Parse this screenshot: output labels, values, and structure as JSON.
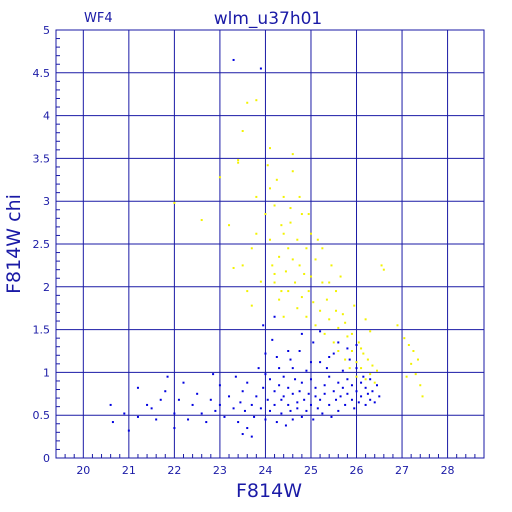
{
  "chart_data": {
    "type": "scatter",
    "title": "wlm_u37h01",
    "panel_label": "WF4",
    "xlabel": "F814W",
    "ylabel": "F814W chi",
    "xlim": [
      19.4,
      28.8
    ],
    "ylim": [
      0,
      5
    ],
    "x_ticks": [
      20,
      21,
      22,
      23,
      24,
      25,
      26,
      27,
      28
    ],
    "y_ticks": [
      0,
      0.5,
      1,
      1.5,
      2,
      2.5,
      3,
      3.5,
      4,
      4.5,
      5
    ],
    "x_tick_labels": [
      "20",
      "21",
      "22",
      "23",
      "24",
      "25",
      "26",
      "27",
      "28"
    ],
    "y_tick_labels": [
      "0",
      "0.5",
      "1",
      "1.5",
      "2",
      "2.5",
      "3",
      "3.5",
      "4",
      "4.5",
      "5"
    ],
    "grid": true,
    "colors": {
      "axis": "#1a1aa6",
      "blue_points": "#0000e0",
      "yellow_points": "#f2f200"
    },
    "series": [
      {
        "color": "#f2f200",
        "points": [
          [
            22.0,
            2.98
          ],
          [
            22.6,
            2.78
          ],
          [
            23.0,
            3.28
          ],
          [
            23.2,
            2.72
          ],
          [
            23.3,
            2.22
          ],
          [
            23.4,
            3.48
          ],
          [
            23.5,
            3.82
          ],
          [
            23.6,
            4.15
          ],
          [
            23.8,
            4.18
          ],
          [
            23.8,
            3.05
          ],
          [
            23.7,
            2.45
          ],
          [
            23.9,
            2.06
          ],
          [
            23.4,
            3.45
          ],
          [
            23.5,
            2.25
          ],
          [
            23.6,
            1.95
          ],
          [
            23.7,
            1.78
          ],
          [
            23.8,
            2.62
          ],
          [
            24.0,
            2.85
          ],
          [
            24.05,
            3.42
          ],
          [
            24.1,
            3.62
          ],
          [
            24.1,
            3.15
          ],
          [
            24.1,
            2.55
          ],
          [
            24.15,
            2.25
          ],
          [
            24.2,
            2.95
          ],
          [
            24.2,
            2.05
          ],
          [
            24.25,
            3.25
          ],
          [
            24.3,
            2.35
          ],
          [
            24.3,
            1.85
          ],
          [
            24.35,
            2.72
          ],
          [
            24.4,
            1.65
          ],
          [
            24.4,
            3.05
          ],
          [
            24.45,
            2.18
          ],
          [
            24.5,
            2.45
          ],
          [
            24.5,
            1.95
          ],
          [
            24.55,
            2.92
          ],
          [
            24.6,
            3.55
          ],
          [
            24.6,
            3.35
          ],
          [
            24.65,
            2.05
          ],
          [
            24.7,
            1.75
          ],
          [
            24.7,
            2.55
          ],
          [
            24.75,
            2.25
          ],
          [
            24.8,
            2.85
          ],
          [
            24.8,
            1.88
          ],
          [
            24.85,
            2.15
          ],
          [
            24.9,
            1.65
          ],
          [
            24.9,
            2.45
          ],
          [
            24.95,
            1.95
          ],
          [
            25.0,
            2.62
          ],
          [
            25.0,
            2.12
          ],
          [
            25.05,
            1.82
          ],
          [
            25.1,
            2.32
          ],
          [
            25.1,
            1.55
          ],
          [
            25.15,
            2.55
          ],
          [
            25.2,
            1.72
          ],
          [
            25.25,
            2.05
          ],
          [
            25.3,
            1.45
          ],
          [
            25.35,
            1.85
          ],
          [
            25.4,
            1.62
          ],
          [
            25.45,
            2.25
          ],
          [
            25.5,
            1.35
          ],
          [
            25.55,
            1.95
          ],
          [
            25.6,
            1.52
          ],
          [
            25.6,
            1.25
          ],
          [
            25.65,
            2.12
          ],
          [
            25.7,
            1.68
          ],
          [
            25.75,
            1.15
          ],
          [
            25.8,
            1.42
          ],
          [
            25.85,
            1.05
          ],
          [
            25.9,
            1.25
          ],
          [
            25.95,
            1.78
          ],
          [
            26.0,
            1.12
          ],
          [
            26.0,
            0.95
          ],
          [
            26.05,
            1.35
          ],
          [
            26.1,
            1.05
          ],
          [
            26.15,
            1.22
          ],
          [
            26.2,
            0.92
          ],
          [
            26.25,
            1.15
          ],
          [
            26.3,
            0.98
          ],
          [
            26.35,
            1.08
          ],
          [
            26.4,
            0.88
          ],
          [
            26.45,
            1.02
          ],
          [
            26.3,
            1.48
          ],
          [
            26.2,
            1.62
          ],
          [
            26.1,
            1.28
          ],
          [
            24.4,
            2.62
          ],
          [
            24.6,
            2.32
          ],
          [
            24.2,
            2.15
          ],
          [
            24.35,
            1.95
          ],
          [
            24.55,
            2.75
          ],
          [
            24.75,
            3.05
          ],
          [
            24.95,
            2.85
          ],
          [
            25.25,
            2.45
          ],
          [
            25.4,
            2.05
          ],
          [
            25.55,
            1.72
          ],
          [
            25.75,
            1.58
          ],
          [
            25.9,
            1.45
          ],
          [
            26.55,
            2.25
          ],
          [
            26.6,
            2.2
          ],
          [
            26.9,
            1.55
          ],
          [
            27.05,
            1.4
          ],
          [
            27.15,
            1.32
          ],
          [
            27.2,
            1.1
          ],
          [
            27.25,
            1.25
          ],
          [
            27.3,
            0.98
          ],
          [
            27.35,
            1.15
          ],
          [
            27.4,
            0.85
          ],
          [
            27.45,
            0.72
          ],
          [
            27.1,
            0.95
          ]
        ]
      },
      {
        "color": "#0000e0",
        "points": [
          [
            23.3,
            4.65
          ],
          [
            23.9,
            4.55
          ],
          [
            20.6,
            0.62
          ],
          [
            20.65,
            0.42
          ],
          [
            20.9,
            0.52
          ],
          [
            21.0,
            0.32
          ],
          [
            21.2,
            0.48
          ],
          [
            21.2,
            0.82
          ],
          [
            21.4,
            0.62
          ],
          [
            21.5,
            0.58
          ],
          [
            21.6,
            0.45
          ],
          [
            21.7,
            0.68
          ],
          [
            21.8,
            0.78
          ],
          [
            21.85,
            0.95
          ],
          [
            22.0,
            0.52
          ],
          [
            22.0,
            0.35
          ],
          [
            22.1,
            0.68
          ],
          [
            22.2,
            0.88
          ],
          [
            22.3,
            0.45
          ],
          [
            22.4,
            0.62
          ],
          [
            22.5,
            0.75
          ],
          [
            22.6,
            0.52
          ],
          [
            22.7,
            0.42
          ],
          [
            22.8,
            0.68
          ],
          [
            22.85,
            0.98
          ],
          [
            22.9,
            0.55
          ],
          [
            23.0,
            0.62
          ],
          [
            23.0,
            0.85
          ],
          [
            23.1,
            0.48
          ],
          [
            23.2,
            0.72
          ],
          [
            23.3,
            0.58
          ],
          [
            23.35,
            0.95
          ],
          [
            23.4,
            0.42
          ],
          [
            23.45,
            0.65
          ],
          [
            23.5,
            0.78
          ],
          [
            23.55,
            0.55
          ],
          [
            23.6,
            0.35
          ],
          [
            23.6,
            0.88
          ],
          [
            23.7,
            0.62
          ],
          [
            23.75,
            0.48
          ],
          [
            23.8,
            0.72
          ],
          [
            23.85,
            1.05
          ],
          [
            23.9,
            0.58
          ],
          [
            23.95,
            0.82
          ],
          [
            23.95,
            1.55
          ],
          [
            24.0,
            1.22
          ],
          [
            24.0,
            0.45
          ],
          [
            24.05,
            0.68
          ],
          [
            24.1,
            0.92
          ],
          [
            24.1,
            0.55
          ],
          [
            24.15,
            1.38
          ],
          [
            24.2,
            0.78
          ],
          [
            24.2,
            0.62
          ],
          [
            24.25,
            0.42
          ],
          [
            24.3,
            0.85
          ],
          [
            24.3,
            1.05
          ],
          [
            24.35,
            0.68
          ],
          [
            24.35,
            0.52
          ],
          [
            24.4,
            0.95
          ],
          [
            24.4,
            0.72
          ],
          [
            24.45,
            0.38
          ],
          [
            24.5,
            0.62
          ],
          [
            24.5,
            0.82
          ],
          [
            24.55,
            1.15
          ],
          [
            24.55,
            0.55
          ],
          [
            24.6,
            0.75
          ],
          [
            24.6,
            0.45
          ],
          [
            24.65,
            0.92
          ],
          [
            24.7,
            0.65
          ],
          [
            24.7,
            0.58
          ],
          [
            24.75,
            1.25
          ],
          [
            24.75,
            0.78
          ],
          [
            24.8,
            0.48
          ],
          [
            24.8,
            0.88
          ],
          [
            24.85,
            0.68
          ],
          [
            24.9,
            1.02
          ],
          [
            24.9,
            0.55
          ],
          [
            24.95,
            0.75
          ],
          [
            25.0,
            0.62
          ],
          [
            25.0,
            0.92
          ],
          [
            25.05,
            1.35
          ],
          [
            25.05,
            0.45
          ],
          [
            25.1,
            0.72
          ],
          [
            25.1,
            0.82
          ],
          [
            25.15,
            0.58
          ],
          [
            25.2,
            1.12
          ],
          [
            25.2,
            0.68
          ],
          [
            25.25,
            0.52
          ],
          [
            25.3,
            0.85
          ],
          [
            25.3,
            0.75
          ],
          [
            25.35,
            1.05
          ],
          [
            25.4,
            0.62
          ],
          [
            25.4,
            0.95
          ],
          [
            25.45,
            0.48
          ],
          [
            25.5,
            0.78
          ],
          [
            25.5,
            1.22
          ],
          [
            25.55,
            0.68
          ],
          [
            25.6,
            0.88
          ],
          [
            25.6,
            0.55
          ],
          [
            25.65,
            0.72
          ],
          [
            25.7,
            1.02
          ],
          [
            25.7,
            0.82
          ],
          [
            25.75,
            0.62
          ],
          [
            25.8,
            0.92
          ],
          [
            25.8,
            0.75
          ],
          [
            25.85,
            1.15
          ],
          [
            25.9,
            0.68
          ],
          [
            25.9,
            0.85
          ],
          [
            25.95,
            0.58
          ],
          [
            26.0,
            0.78
          ],
          [
            26.0,
            1.05
          ],
          [
            26.05,
            0.65
          ],
          [
            26.1,
            0.88
          ],
          [
            26.1,
            0.72
          ],
          [
            26.15,
            0.95
          ],
          [
            26.2,
            0.62
          ],
          [
            26.2,
            0.82
          ],
          [
            26.25,
            0.75
          ],
          [
            26.3,
            0.68
          ],
          [
            26.3,
            0.92
          ],
          [
            26.35,
            0.78
          ],
          [
            26.4,
            0.65
          ],
          [
            26.45,
            0.85
          ],
          [
            26.5,
            0.72
          ],
          [
            23.5,
            0.28
          ],
          [
            23.7,
            0.25
          ],
          [
            24.2,
            1.65
          ],
          [
            24.5,
            1.25
          ],
          [
            24.8,
            1.45
          ],
          [
            25.2,
            1.48
          ],
          [
            25.6,
            1.35
          ],
          [
            26.0,
            1.32
          ],
          [
            24.0,
            0.98
          ],
          [
            24.25,
            1.18
          ],
          [
            24.6,
            1.05
          ],
          [
            25.0,
            1.12
          ],
          [
            25.4,
            1.18
          ],
          [
            25.8,
            1.28
          ]
        ]
      }
    ]
  }
}
